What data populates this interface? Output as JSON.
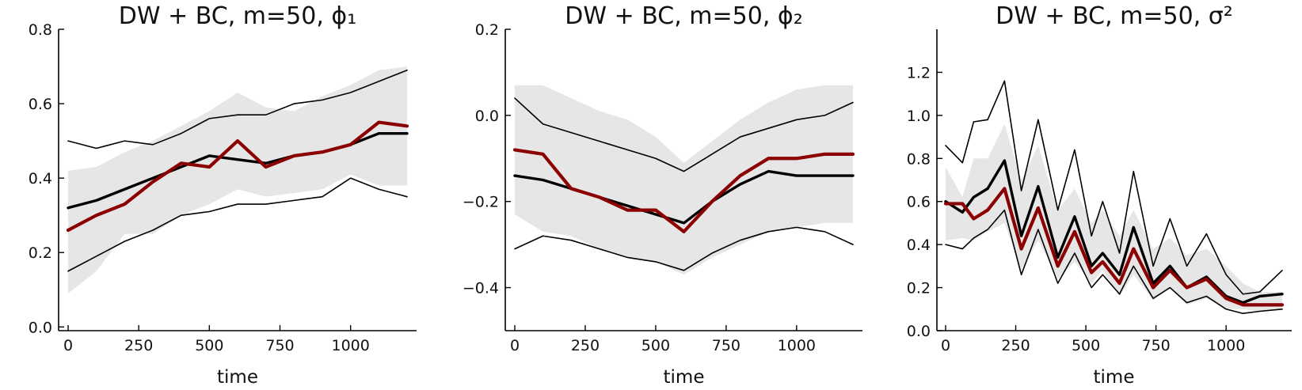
{
  "chart_data": [
    {
      "type": "line",
      "title": "DW + BC, m=50, ϕ₁",
      "xlabel": "time",
      "ylabel": "",
      "xlim": [
        0,
        1200
      ],
      "ylim": [
        -0.01,
        0.8
      ],
      "xticks": [
        0,
        250,
        500,
        750,
        1000
      ],
      "xtick_labels": [
        "0",
        "250",
        "500",
        "750",
        "1000"
      ],
      "yticks": [
        0.0,
        0.2,
        0.4,
        0.6,
        0.8
      ],
      "ytick_labels": [
        "0.0",
        "0.2",
        "0.4",
        "0.6",
        "0.8"
      ],
      "x": [
        0,
        100,
        200,
        300,
        400,
        500,
        600,
        700,
        800,
        900,
        1000,
        1100,
        1200
      ],
      "band": {
        "lower": [
          0.09,
          0.15,
          0.25,
          0.25,
          0.3,
          0.33,
          0.37,
          0.35,
          0.36,
          0.37,
          0.41,
          0.38,
          0.38
        ],
        "upper": [
          0.42,
          0.43,
          0.47,
          0.5,
          0.54,
          0.58,
          0.63,
          0.59,
          0.58,
          0.62,
          0.65,
          0.69,
          0.7
        ]
      },
      "series": [
        {
          "values": [
            0.5,
            0.48,
            0.5,
            0.49,
            0.52,
            0.56,
            0.57,
            0.57,
            0.6,
            0.61,
            0.63,
            0.66,
            0.69
          ]
        },
        {
          "values": [
            0.15,
            0.19,
            0.23,
            0.26,
            0.3,
            0.31,
            0.33,
            0.33,
            0.34,
            0.35,
            0.4,
            0.37,
            0.35
          ]
        },
        {
          "values": [
            0.32,
            0.34,
            0.37,
            0.4,
            0.43,
            0.46,
            0.45,
            0.44,
            0.46,
            0.47,
            0.49,
            0.52,
            0.52
          ]
        },
        {
          "values": [
            0.26,
            0.3,
            0.33,
            0.39,
            0.44,
            0.43,
            0.5,
            0.43,
            0.46,
            0.47,
            0.49,
            0.55,
            0.54
          ]
        }
      ],
      "colors": {
        "band": "#e6e6e6",
        "thin": "#000000",
        "median": "#000000",
        "truth": "#8b0000"
      }
    },
    {
      "type": "line",
      "title": "DW + BC, m=50, ϕ₂",
      "xlabel": "time",
      "ylabel": "",
      "xlim": [
        0,
        1200
      ],
      "ylim": [
        -0.5,
        0.2
      ],
      "xticks": [
        0,
        250,
        500,
        750,
        1000
      ],
      "xtick_labels": [
        "0",
        "250",
        "500",
        "750",
        "1000"
      ],
      "yticks": [
        -0.4,
        -0.2,
        0.0,
        0.2
      ],
      "ytick_labels": [
        "−0.4",
        "−0.2",
        "0.0",
        "0.2"
      ],
      "x": [
        0,
        100,
        200,
        300,
        400,
        500,
        600,
        700,
        800,
        900,
        1000,
        1100,
        1200
      ],
      "band": {
        "lower": [
          -0.23,
          -0.27,
          -0.28,
          -0.31,
          -0.33,
          -0.34,
          -0.37,
          -0.33,
          -0.3,
          -0.27,
          -0.26,
          -0.25,
          -0.25
        ],
        "upper": [
          0.07,
          0.07,
          0.04,
          0.01,
          -0.01,
          -0.05,
          -0.11,
          -0.06,
          -0.01,
          0.03,
          0.06,
          0.07,
          0.07
        ]
      },
      "series": [
        {
          "values": [
            0.04,
            -0.02,
            -0.04,
            -0.06,
            -0.08,
            -0.1,
            -0.13,
            -0.09,
            -0.05,
            -0.03,
            -0.01,
            0.0,
            0.03
          ]
        },
        {
          "values": [
            -0.31,
            -0.28,
            -0.29,
            -0.31,
            -0.33,
            -0.34,
            -0.36,
            -0.32,
            -0.29,
            -0.27,
            -0.26,
            -0.27,
            -0.3
          ]
        },
        {
          "values": [
            -0.14,
            -0.15,
            -0.17,
            -0.19,
            -0.21,
            -0.23,
            -0.25,
            -0.2,
            -0.16,
            -0.13,
            -0.14,
            -0.14,
            -0.14
          ]
        },
        {
          "values": [
            -0.08,
            -0.09,
            -0.17,
            -0.19,
            -0.22,
            -0.22,
            -0.27,
            -0.2,
            -0.14,
            -0.1,
            -0.1,
            -0.09,
            -0.09
          ]
        }
      ],
      "colors": {
        "band": "#e6e6e6",
        "thin": "#000000",
        "median": "#000000",
        "truth": "#8b0000"
      }
    },
    {
      "type": "line",
      "title": "DW + BC, m=50, σ²",
      "xlabel": "time",
      "ylabel": "",
      "xlim": [
        0,
        1200
      ],
      "ylim": [
        0.0,
        1.4
      ],
      "xticks": [
        0,
        250,
        500,
        750,
        1000
      ],
      "xtick_labels": [
        "0",
        "250",
        "500",
        "750",
        "1000"
      ],
      "yticks": [
        0.0,
        0.2,
        0.4,
        0.6,
        0.8,
        1.0,
        1.2
      ],
      "ytick_labels": [
        "0.0",
        "0.2",
        "0.4",
        "0.6",
        "0.8",
        "1.0",
        "1.2"
      ],
      "x": [
        0,
        60,
        100,
        150,
        210,
        270,
        330,
        400,
        460,
        520,
        560,
        620,
        670,
        740,
        800,
        860,
        930,
        1000,
        1060,
        1120,
        1200
      ],
      "band": {
        "lower": [
          0.42,
          0.43,
          0.42,
          0.46,
          0.5,
          0.28,
          0.42,
          0.24,
          0.32,
          0.22,
          0.28,
          0.16,
          0.26,
          0.14,
          0.2,
          0.12,
          0.15,
          0.1,
          0.1,
          0.09,
          0.1
        ],
        "upper": [
          0.76,
          0.62,
          0.8,
          0.8,
          0.96,
          0.7,
          0.86,
          0.56,
          0.66,
          0.5,
          0.56,
          0.44,
          0.56,
          0.38,
          0.43,
          0.35,
          0.38,
          0.3,
          0.22,
          0.18,
          0.18
        ]
      },
      "series": [
        {
          "values": [
            0.86,
            0.78,
            0.97,
            0.98,
            1.16,
            0.65,
            0.98,
            0.56,
            0.84,
            0.44,
            0.6,
            0.36,
            0.74,
            0.3,
            0.52,
            0.3,
            0.45,
            0.26,
            0.17,
            0.18,
            0.28
          ]
        },
        {
          "values": [
            0.4,
            0.38,
            0.43,
            0.47,
            0.56,
            0.26,
            0.47,
            0.22,
            0.36,
            0.2,
            0.26,
            0.17,
            0.3,
            0.15,
            0.2,
            0.13,
            0.16,
            0.1,
            0.08,
            0.09,
            0.1
          ]
        },
        {
          "values": [
            0.6,
            0.55,
            0.62,
            0.66,
            0.79,
            0.44,
            0.67,
            0.34,
            0.53,
            0.3,
            0.36,
            0.26,
            0.48,
            0.22,
            0.3,
            0.2,
            0.25,
            0.16,
            0.13,
            0.16,
            0.17
          ]
        },
        {
          "values": [
            0.59,
            0.59,
            0.52,
            0.56,
            0.66,
            0.38,
            0.57,
            0.3,
            0.46,
            0.27,
            0.32,
            0.22,
            0.38,
            0.2,
            0.28,
            0.2,
            0.24,
            0.15,
            0.12,
            0.12,
            0.12
          ]
        }
      ],
      "colors": {
        "band": "#e6e6e6",
        "thin": "#000000",
        "median": "#000000",
        "truth": "#8b0000"
      }
    }
  ]
}
